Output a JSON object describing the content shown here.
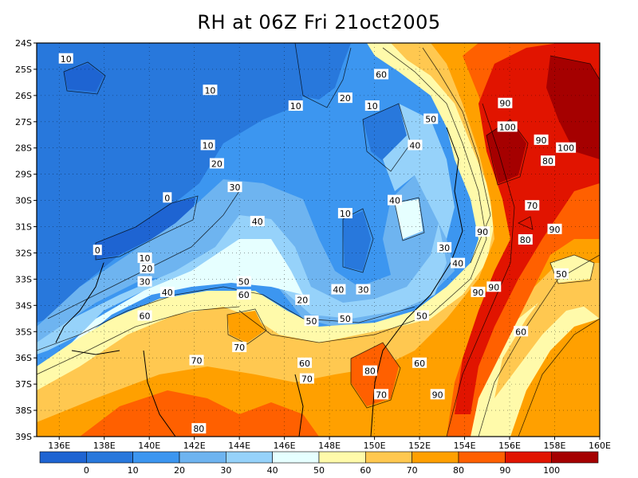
{
  "title": "RH at 06Z Fri 21oct2005",
  "map": {
    "lat_labels": [
      "24S",
      "25S",
      "26S",
      "27S",
      "28S",
      "29S",
      "30S",
      "31S",
      "32S",
      "33S",
      "34S",
      "35S",
      "36S",
      "37S",
      "38S",
      "39S"
    ],
    "lon_labels": [
      "136E",
      "138E",
      "140E",
      "142E",
      "144E",
      "146E",
      "148E",
      "150E",
      "152E",
      "154E",
      "156E",
      "158E",
      "160E"
    ]
  },
  "colorbar": {
    "labels": [
      "0",
      "10",
      "20",
      "30",
      "40",
      "50",
      "60",
      "70",
      "80",
      "90",
      "100"
    ],
    "colors": [
      "#1e64d2",
      "#2878dc",
      "#3c96f0",
      "#6eb4f0",
      "#96d2fa",
      "#e6ffff",
      "#fffaaa",
      "#ffc850",
      "#ffa000",
      "#ff6000",
      "#e11400",
      "#a50000"
    ]
  },
  "contour_labels": [
    {
      "text": "10",
      "lon": 136.3,
      "lat": -24.6
    },
    {
      "text": "10",
      "lon": 142.7,
      "lat": -25.8
    },
    {
      "text": "10",
      "lon": 146.5,
      "lat": -26.4
    },
    {
      "text": "20",
      "lon": 148.7,
      "lat": -26.1
    },
    {
      "text": "10",
      "lon": 149.9,
      "lat": -26.4
    },
    {
      "text": "10",
      "lon": 142.6,
      "lat": -27.9
    },
    {
      "text": "20",
      "lon": 143.0,
      "lat": -28.6
    },
    {
      "text": "30",
      "lon": 143.8,
      "lat": -29.5
    },
    {
      "text": "0",
      "lon": 140.8,
      "lat": -29.9
    },
    {
      "text": "40",
      "lon": 144.8,
      "lat": -30.8
    },
    {
      "text": "10",
      "lon": 148.7,
      "lat": -30.5
    },
    {
      "text": "40",
      "lon": 150.9,
      "lat": -30.0
    },
    {
      "text": "0",
      "lon": 137.7,
      "lat": -31.9
    },
    {
      "text": "10",
      "lon": 139.8,
      "lat": -32.2
    },
    {
      "text": "20",
      "lon": 139.9,
      "lat": -32.6
    },
    {
      "text": "30",
      "lon": 139.8,
      "lat": -33.1
    },
    {
      "text": "40",
      "lon": 140.8,
      "lat": -33.5
    },
    {
      "text": "50",
      "lon": 144.2,
      "lat": -33.1
    },
    {
      "text": "60",
      "lon": 144.2,
      "lat": -33.6
    },
    {
      "text": "20",
      "lon": 146.8,
      "lat": -33.8
    },
    {
      "text": "40",
      "lon": 148.4,
      "lat": -33.4
    },
    {
      "text": "30",
      "lon": 149.5,
      "lat": -33.4
    },
    {
      "text": "50",
      "lon": 147.2,
      "lat": -34.6
    },
    {
      "text": "50",
      "lon": 148.7,
      "lat": -34.5
    },
    {
      "text": "50",
      "lon": 152.1,
      "lat": -34.4
    },
    {
      "text": "60",
      "lon": 139.8,
      "lat": -34.4
    },
    {
      "text": "70",
      "lon": 144.0,
      "lat": -35.6
    },
    {
      "text": "70",
      "lon": 142.1,
      "lat": -36.1
    },
    {
      "text": "60",
      "lon": 146.9,
      "lat": -36.2
    },
    {
      "text": "70",
      "lon": 147.0,
      "lat": -36.8
    },
    {
      "text": "80",
      "lon": 149.8,
      "lat": -36.5
    },
    {
      "text": "60",
      "lon": 152.0,
      "lat": -36.2
    },
    {
      "text": "70",
      "lon": 150.3,
      "lat": -37.4
    },
    {
      "text": "90",
      "lon": 152.8,
      "lat": -37.4
    },
    {
      "text": "80",
      "lon": 142.2,
      "lat": -38.7
    },
    {
      "text": "50",
      "lon": 152.5,
      "lat": -26.9
    },
    {
      "text": "40",
      "lon": 151.8,
      "lat": -27.9
    },
    {
      "text": "60",
      "lon": 150.3,
      "lat": -25.2
    },
    {
      "text": "90",
      "lon": 155.8,
      "lat": -26.3
    },
    {
      "text": "100",
      "lon": 155.9,
      "lat": -27.2
    },
    {
      "text": "90",
      "lon": 157.4,
      "lat": -27.7
    },
    {
      "text": "100",
      "lon": 158.5,
      "lat": -28.0
    },
    {
      "text": "80",
      "lon": 157.7,
      "lat": -28.5
    },
    {
      "text": "70",
      "lon": 157.0,
      "lat": -30.2
    },
    {
      "text": "90",
      "lon": 154.8,
      "lat": -31.2
    },
    {
      "text": "80",
      "lon": 156.7,
      "lat": -31.5
    },
    {
      "text": "90",
      "lon": 158.0,
      "lat": -31.1
    },
    {
      "text": "30",
      "lon": 153.1,
      "lat": -31.8
    },
    {
      "text": "40",
      "lon": 153.7,
      "lat": -32.4
    },
    {
      "text": "90",
      "lon": 155.3,
      "lat": -33.3
    },
    {
      "text": "90",
      "lon": 154.6,
      "lat": -33.5
    },
    {
      "text": "50",
      "lon": 158.3,
      "lat": -32.8
    },
    {
      "text": "60",
      "lon": 156.5,
      "lat": -35.0
    }
  ]
}
